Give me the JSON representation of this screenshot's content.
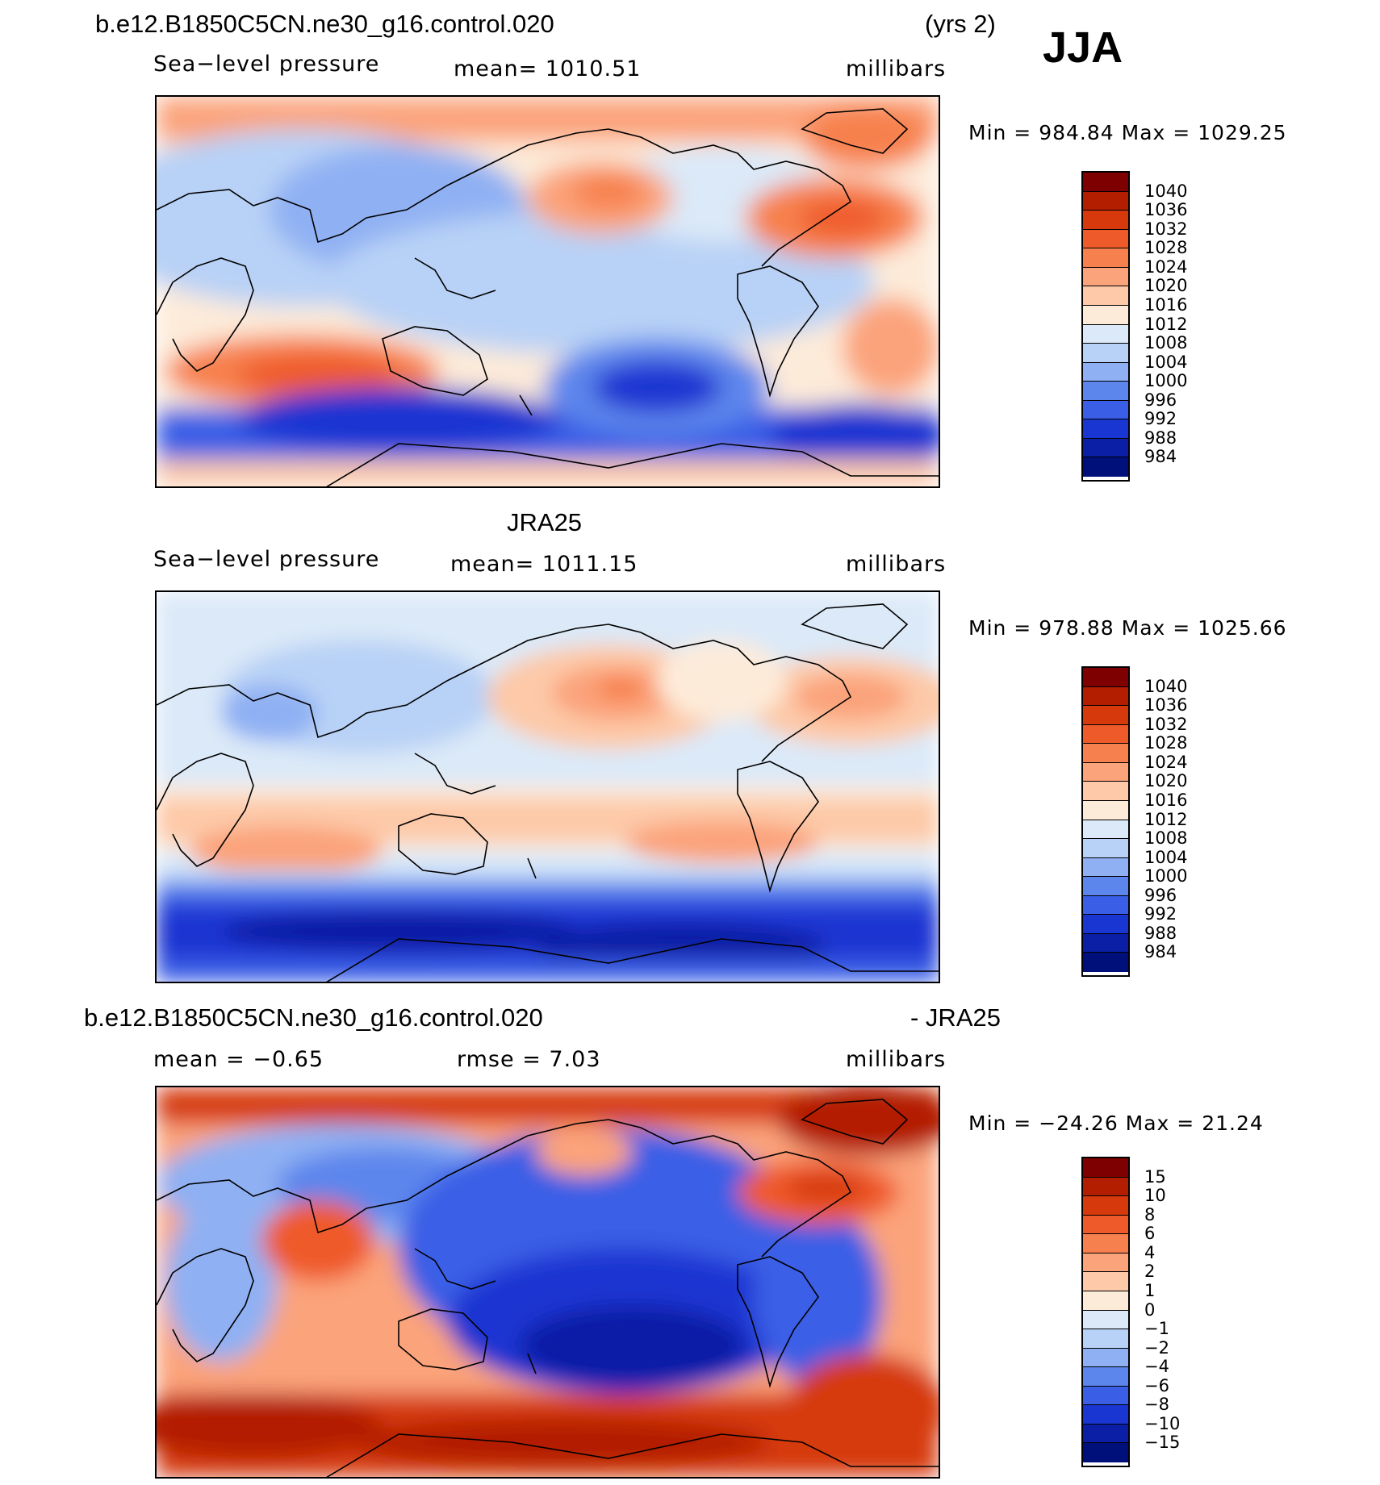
{
  "header": {
    "case_name": "b.e12.B1850C5CN.ne30_g16.control.020",
    "years": "(yrs 2)",
    "season": "JJA"
  },
  "panels": [
    {
      "id": "model",
      "title": "",
      "left_label": "Sea−level pressure",
      "center_label": "mean=  1010.51",
      "units": "millibars",
      "min_max": "Min  =  984.84  Max  =  1029.25"
    },
    {
      "id": "obs",
      "title": "JRA25",
      "left_label": "Sea−level pressure",
      "center_label": "mean=  1011.15",
      "units": "millibars",
      "min_max": "Min  =  978.88  Max  =  1025.66"
    },
    {
      "id": "diff",
      "title_left": "b.e12.B1850C5CN.ne30_g16.control.020",
      "title_right": "- JRA25",
      "left_label": "mean  =     −0.65",
      "center_label": "rmse  =      7.03",
      "units": "millibars",
      "min_max": "Min  =  −24.26  Max  =     21.24"
    }
  ],
  "colorbars": {
    "slp_levels": [
      "1040",
      "1036",
      "1032",
      "1028",
      "1024",
      "1020",
      "1016",
      "1012",
      "1008",
      "1004",
      "1000",
      "996",
      "992",
      "988",
      "984"
    ],
    "slp_colors": [
      "#7f0000",
      "#b31d00",
      "#d63a0c",
      "#ef5a2a",
      "#f7814e",
      "#fba37a",
      "#fdc9a8",
      "#fdebd9",
      "#dbe9f8",
      "#b8d1f6",
      "#8fb0f3",
      "#5d86ec",
      "#3a5ee6",
      "#1a36d2",
      "#0a1fa6",
      "#00107a"
    ],
    "diff_levels": [
      "15",
      "10",
      "8",
      "6",
      "4",
      "2",
      "1",
      "0",
      "−1",
      "−2",
      "−4",
      "−6",
      "−8",
      "−10",
      "−15"
    ],
    "diff_colors": [
      "#7f0000",
      "#b31d00",
      "#d63a0c",
      "#ef5a2a",
      "#f7814e",
      "#fba37a",
      "#fdc9a8",
      "#fdebd9",
      "#dbe9f8",
      "#b8d1f6",
      "#8fb0f3",
      "#5d86ec",
      "#3a5ee6",
      "#1a36d2",
      "#0a1fa6",
      "#00107a"
    ]
  },
  "chart_data": [
    {
      "type": "heatmap",
      "title": "b.e12.B1850C5CN.ne30_g16.control.020 (yrs 2) JJA",
      "variable": "Sea-level pressure",
      "units": "millibars",
      "mean": 1010.51,
      "min": 984.84,
      "max": 1029.25,
      "contour_levels": [
        984,
        988,
        992,
        996,
        1000,
        1004,
        1008,
        1012,
        1016,
        1020,
        1024,
        1028,
        1032,
        1036,
        1040
      ]
    },
    {
      "type": "heatmap",
      "title": "JRA25",
      "variable": "Sea-level pressure",
      "units": "millibars",
      "mean": 1011.15,
      "min": 978.88,
      "max": 1025.66,
      "contour_levels": [
        984,
        988,
        992,
        996,
        1000,
        1004,
        1008,
        1012,
        1016,
        1020,
        1024,
        1028,
        1032,
        1036,
        1040
      ]
    },
    {
      "type": "heatmap",
      "title": "b.e12.B1850C5CN.ne30_g16.control.020 - JRA25",
      "units": "millibars",
      "mean": -0.65,
      "rmse": 7.03,
      "min": -24.26,
      "max": 21.24,
      "contour_levels": [
        -15,
        -10,
        -8,
        -6,
        -4,
        -2,
        -1,
        0,
        1,
        2,
        4,
        6,
        8,
        10,
        15
      ]
    }
  ]
}
